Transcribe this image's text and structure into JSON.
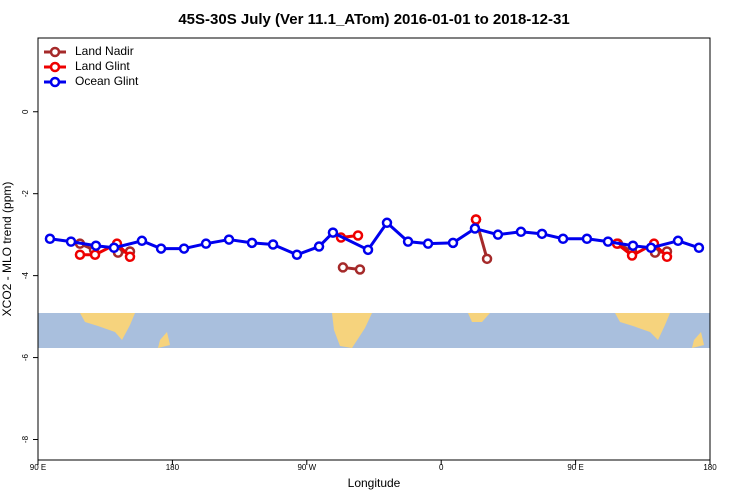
{
  "chart_data": {
    "type": "line",
    "title": "45S-30S July (Ver 11.1_ATom)   2016-01-01 to 2018-12-31",
    "x_label": "Longitude",
    "y_label": "XCO2 - MLO trend (ppm)",
    "xlim": [
      90,
      540
    ],
    "ylim": [
      -8.5,
      1.8
    ],
    "xticks": [
      {
        "value": 90,
        "label": "90 E"
      },
      180,
      {
        "value": 270,
        "label": "90 W"
      },
      {
        "value": 360,
        "label": "0"
      },
      {
        "value": 450,
        "label": "90 E"
      },
      {
        "value": 540,
        "label": "180"
      }
    ],
    "yticks": [
      0,
      -2,
      -4,
      -6,
      -8
    ],
    "legend": "top-left",
    "series": [
      {
        "name": "Land Nadir",
        "color": "#a52a2a",
        "x": [
          118.1,
          127.5,
          null,
          143.6,
          151.6,
          null,
          294.2,
          305.6,
          null,
          383.3,
          390.7,
          null,
          478.4,
          487.8,
          null,
          503.2,
          511.2
        ],
        "values": [
          -3.22,
          -3.37,
          null,
          -3.44,
          -3.41,
          null,
          -3.8,
          -3.85,
          null,
          -2.63,
          -3.59,
          null,
          -3.22,
          -3.41,
          null,
          -3.44,
          -3.41
        ]
      },
      {
        "name": "Land Glint",
        "color": "#ee0000",
        "x": [
          118.1,
          128.2,
          142.9,
          151.6,
          null,
          292.9,
          304.3,
          null,
          383.3,
          null,
          477.7,
          487.8,
          502.5,
          511.2
        ],
        "values": [
          -3.49,
          -3.49,
          -3.22,
          -3.54,
          null,
          -3.07,
          -3.02,
          null,
          -2.63,
          null,
          -3.22,
          -3.51,
          -3.22,
          -3.54
        ]
      },
      {
        "name": "Ocean Glint",
        "color": "#0000ee",
        "x": [
          98.0,
          112.1,
          128.8,
          140.9,
          159.6,
          172.4,
          187.8,
          202.5,
          217.9,
          233.3,
          247.4,
          263.4,
          278.2,
          287.5,
          311.0,
          323.7,
          337.8,
          351.2,
          367.9,
          382.6,
          398.0,
          413.4,
          427.5,
          441.6,
          457.6,
          471.7,
          488.4,
          500.5,
          518.6,
          532.6
        ],
        "values": [
          -3.1,
          -3.17,
          -3.27,
          -3.32,
          -3.15,
          -3.34,
          -3.34,
          -3.22,
          -3.12,
          -3.2,
          -3.24,
          -3.49,
          -3.29,
          -2.95,
          -3.37,
          -2.71,
          -3.17,
          -3.22,
          -3.2,
          -2.85,
          -3.0,
          -2.93,
          -2.98,
          -3.1,
          -3.1,
          -3.17,
          -3.27,
          -3.32,
          -3.15,
          -3.32
        ]
      }
    ]
  }
}
